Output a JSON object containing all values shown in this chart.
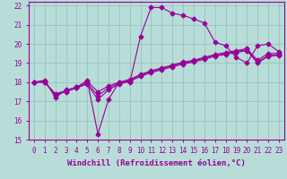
{
  "title": "",
  "xlabel": "Windchill (Refroidissement éolien,°C)",
  "xlim": [
    -0.5,
    23.5
  ],
  "ylim": [
    15,
    22.2
  ],
  "yticks": [
    15,
    16,
    17,
    18,
    19,
    20,
    21,
    22
  ],
  "xticks": [
    0,
    1,
    2,
    3,
    4,
    5,
    6,
    7,
    8,
    9,
    10,
    11,
    12,
    13,
    14,
    15,
    16,
    17,
    18,
    19,
    20,
    21,
    22,
    23
  ],
  "bg_color": "#b8ddd8",
  "grid_color": "#8fbfbb",
  "line_color": "#990099",
  "lines": [
    {
      "x": [
        0,
        1,
        2,
        3,
        4,
        5,
        6,
        7,
        8,
        9,
        10,
        11,
        12,
        13,
        14,
        15,
        16,
        17,
        18,
        19,
        20,
        21,
        22,
        23
      ],
      "y": [
        18.0,
        18.1,
        17.2,
        17.6,
        17.7,
        18.1,
        15.3,
        17.1,
        18.0,
        18.0,
        20.4,
        21.9,
        21.9,
        21.6,
        21.5,
        21.3,
        21.1,
        20.1,
        19.9,
        19.3,
        19.0,
        19.9,
        20.0,
        19.6
      ]
    },
    {
      "x": [
        0,
        1,
        2,
        3,
        4,
        5,
        6,
        7,
        8,
        9,
        10,
        11,
        12,
        13,
        14,
        15,
        16,
        17,
        18,
        19,
        20,
        21,
        22,
        23
      ],
      "y": [
        18.0,
        18.05,
        17.3,
        17.55,
        17.75,
        18.05,
        17.5,
        17.8,
        18.0,
        18.15,
        18.4,
        18.6,
        18.75,
        18.9,
        19.05,
        19.15,
        19.3,
        19.45,
        19.55,
        19.65,
        19.75,
        19.15,
        19.5,
        19.5
      ]
    },
    {
      "x": [
        0,
        1,
        2,
        3,
        4,
        5,
        6,
        7,
        8,
        9,
        10,
        11,
        12,
        13,
        14,
        15,
        16,
        17,
        18,
        19,
        20,
        21,
        22,
        23
      ],
      "y": [
        18.0,
        18.0,
        17.4,
        17.55,
        17.75,
        17.95,
        17.3,
        17.7,
        17.95,
        18.1,
        18.35,
        18.55,
        18.7,
        18.85,
        19.0,
        19.1,
        19.25,
        19.4,
        19.5,
        19.6,
        19.7,
        19.05,
        19.4,
        19.45
      ]
    },
    {
      "x": [
        0,
        1,
        2,
        3,
        4,
        5,
        6,
        7,
        8,
        9,
        10,
        11,
        12,
        13,
        14,
        15,
        16,
        17,
        18,
        19,
        20,
        21,
        22,
        23
      ],
      "y": [
        18.0,
        18.0,
        17.35,
        17.5,
        17.7,
        17.9,
        17.1,
        17.6,
        17.9,
        18.05,
        18.3,
        18.5,
        18.65,
        18.8,
        18.95,
        19.05,
        19.2,
        19.35,
        19.45,
        19.55,
        19.65,
        19.0,
        19.35,
        19.4
      ]
    }
  ],
  "marker": "D",
  "markersize": 2.5,
  "linewidth": 0.8,
  "xlabel_fontsize": 6.5,
  "tick_fontsize": 5.5
}
